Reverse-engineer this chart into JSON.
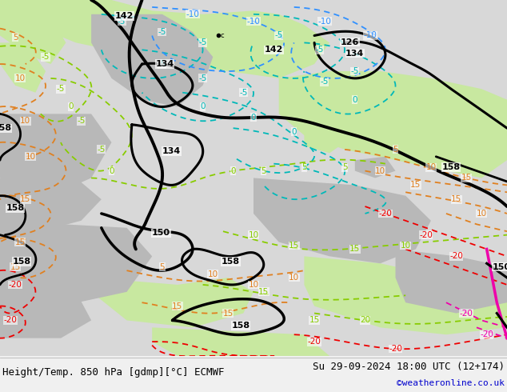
{
  "title_left": "Height/Temp. 850 hPa [gdmp][°C] ECMWF",
  "title_right": "Su 29-09-2024 18:00 UTC (12+174)",
  "watermark": "©weatheronline.co.uk",
  "fig_width": 6.34,
  "fig_height": 4.9,
  "dpi": 100,
  "bottom_bar_color": "#f0f0f0",
  "bottom_text_color": "#000000",
  "watermark_color": "#0000cd",
  "font_size_bottom": 9,
  "font_size_watermark": 8,
  "bg_ocean": "#d8d8d8",
  "bg_land_green": "#c8e8a0",
  "bg_land_gray": "#b8b8b8",
  "col_black": "#000000",
  "col_orange": "#e08020",
  "col_lgreen": "#88cc00",
  "col_cyan": "#00b8b8",
  "col_blue": "#3090ff",
  "col_red": "#ee0000",
  "col_magenta": "#ee00aa"
}
